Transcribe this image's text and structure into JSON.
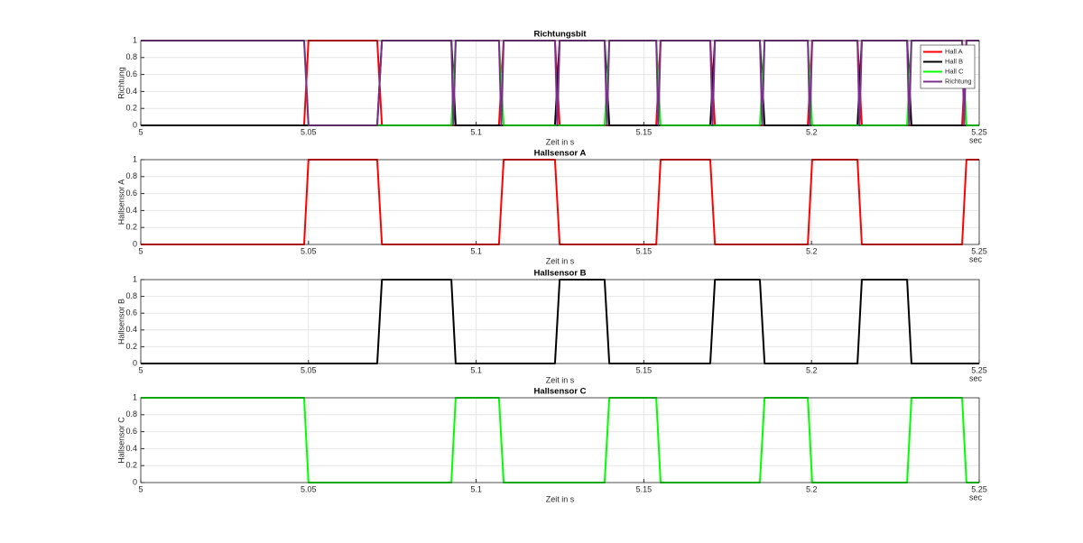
{
  "chart_data": [
    {
      "type": "line",
      "title": "Richtungsbit",
      "ylabel": "Richtung",
      "xlabel": "Zeit in s",
      "x_unit": "sec",
      "xlim": [
        5,
        5.25
      ],
      "ylim": [
        0,
        1
      ],
      "xticks": [
        5,
        5.05,
        5.1,
        5.15,
        5.2,
        5.25
      ],
      "yticks": [
        0,
        0.2,
        0.4,
        0.6,
        0.8,
        1
      ],
      "grid": true,
      "legend": "upper right",
      "series": [
        {
          "name": "Hall A",
          "color": "#ff0000",
          "x": [
            5,
            5.0487,
            5.05,
            5.0705,
            5.0719,
            5.1068,
            5.1082,
            5.1235,
            5.1249,
            5.1537,
            5.155,
            5.1698,
            5.1712,
            5.1989,
            5.2002,
            5.2137,
            5.215,
            5.2449,
            5.2462,
            5.25
          ],
          "values": [
            0,
            0,
            1,
            1,
            0,
            0,
            1,
            1,
            0,
            0,
            1,
            1,
            0,
            0,
            1,
            1,
            0,
            0,
            1,
            1
          ]
        },
        {
          "name": "Hall B",
          "color": "#000000",
          "x": [
            5,
            5.0705,
            5.0719,
            5.0926,
            5.0939,
            5.1235,
            5.1249,
            5.1383,
            5.1397,
            5.1698,
            5.1712,
            5.1846,
            5.186,
            5.2137,
            5.215,
            5.2285,
            5.2298,
            5.25
          ],
          "values": [
            0,
            0,
            1,
            1,
            0,
            0,
            1,
            1,
            0,
            0,
            1,
            1,
            0,
            0,
            1,
            1,
            0,
            0
          ]
        },
        {
          "name": "Hall C",
          "color": "#00ff00",
          "x": [
            5,
            5.0487,
            5.05,
            5.0926,
            5.0939,
            5.1068,
            5.1082,
            5.1383,
            5.1397,
            5.1537,
            5.155,
            5.1846,
            5.186,
            5.1989,
            5.2002,
            5.2285,
            5.2298,
            5.2449,
            5.2462,
            5.25
          ],
          "values": [
            1,
            1,
            0,
            0,
            1,
            1,
            0,
            0,
            1,
            1,
            0,
            0,
            1,
            1,
            0,
            0,
            1,
            1,
            0,
            0
          ]
        },
        {
          "name": "Richtung",
          "color": "#7e2f8e",
          "x": [
            5,
            5.0487,
            5.05,
            5.0705,
            5.0719,
            5.0926,
            5.0932,
            5.0939,
            5.1068,
            5.1075,
            5.1082,
            5.1235,
            5.1242,
            5.1249,
            5.1383,
            5.139,
            5.1397,
            5.1537,
            5.1543,
            5.155,
            5.1698,
            5.1705,
            5.1712,
            5.1846,
            5.1853,
            5.186,
            5.1989,
            5.1995,
            5.2002,
            5.2137,
            5.2143,
            5.215,
            5.2285,
            5.2291,
            5.2298,
            5.2449,
            5.2455,
            5.2462,
            5.25
          ],
          "values": [
            1,
            1,
            0,
            0,
            1,
            1,
            0,
            1,
            1,
            0,
            1,
            1,
            0,
            1,
            1,
            0,
            1,
            1,
            0,
            1,
            1,
            0,
            1,
            1,
            0,
            1,
            1,
            0,
            1,
            1,
            0,
            1,
            1,
            0,
            1,
            1,
            0,
            1,
            1
          ]
        }
      ]
    },
    {
      "type": "line",
      "title": "Hallsensor A",
      "ylabel": "Hallsensor A",
      "xlabel": "Zeit in s",
      "x_unit": "sec",
      "xlim": [
        5,
        5.25
      ],
      "ylim": [
        0,
        1
      ],
      "xticks": [
        5,
        5.05,
        5.1,
        5.15,
        5.2,
        5.25
      ],
      "yticks": [
        0,
        0.2,
        0.4,
        0.6,
        0.8,
        1
      ],
      "grid": true,
      "series": [
        {
          "color": "#ff0000",
          "x": [
            5,
            5.0487,
            5.05,
            5.0705,
            5.0719,
            5.1068,
            5.1082,
            5.1235,
            5.1249,
            5.1537,
            5.155,
            5.1698,
            5.1712,
            5.1989,
            5.2002,
            5.2137,
            5.215,
            5.2449,
            5.2462,
            5.25
          ],
          "values": [
            0,
            0,
            1,
            1,
            0,
            0,
            1,
            1,
            0,
            0,
            1,
            1,
            0,
            0,
            1,
            1,
            0,
            0,
            1,
            1
          ]
        }
      ]
    },
    {
      "type": "line",
      "title": "Hallsensor B",
      "ylabel": "Hallsensor B",
      "xlabel": "Zeit in s",
      "x_unit": "sec",
      "xlim": [
        5,
        5.25
      ],
      "ylim": [
        0,
        1
      ],
      "xticks": [
        5,
        5.05,
        5.1,
        5.15,
        5.2,
        5.25
      ],
      "yticks": [
        0,
        0.2,
        0.4,
        0.6,
        0.8,
        1
      ],
      "grid": true,
      "series": [
        {
          "color": "#000000",
          "x": [
            5,
            5.0705,
            5.0719,
            5.0926,
            5.0939,
            5.1235,
            5.1249,
            5.1383,
            5.1397,
            5.1698,
            5.1712,
            5.1846,
            5.186,
            5.2137,
            5.215,
            5.2285,
            5.2298,
            5.25
          ],
          "values": [
            0,
            0,
            1,
            1,
            0,
            0,
            1,
            1,
            0,
            0,
            1,
            1,
            0,
            0,
            1,
            1,
            0,
            0
          ]
        }
      ]
    },
    {
      "type": "line",
      "title": "Hallsensor C",
      "ylabel": "Hallsensor C",
      "xlabel": "Zeit in s",
      "x_unit": "sec",
      "xlim": [
        5,
        5.25
      ],
      "ylim": [
        0,
        1
      ],
      "xticks": [
        5,
        5.05,
        5.1,
        5.15,
        5.2,
        5.25
      ],
      "yticks": [
        0,
        0.2,
        0.4,
        0.6,
        0.8,
        1
      ],
      "grid": true,
      "series": [
        {
          "color": "#00ff00",
          "x": [
            5,
            5.0487,
            5.05,
            5.0926,
            5.0939,
            5.1068,
            5.1082,
            5.1383,
            5.1397,
            5.1537,
            5.155,
            5.1846,
            5.186,
            5.1989,
            5.2002,
            5.2285,
            5.2298,
            5.2449,
            5.2462,
            5.25
          ],
          "values": [
            1,
            1,
            0,
            0,
            1,
            1,
            0,
            0,
            1,
            1,
            0,
            0,
            1,
            1,
            0,
            0,
            1,
            1,
            0,
            0
          ]
        }
      ]
    }
  ]
}
